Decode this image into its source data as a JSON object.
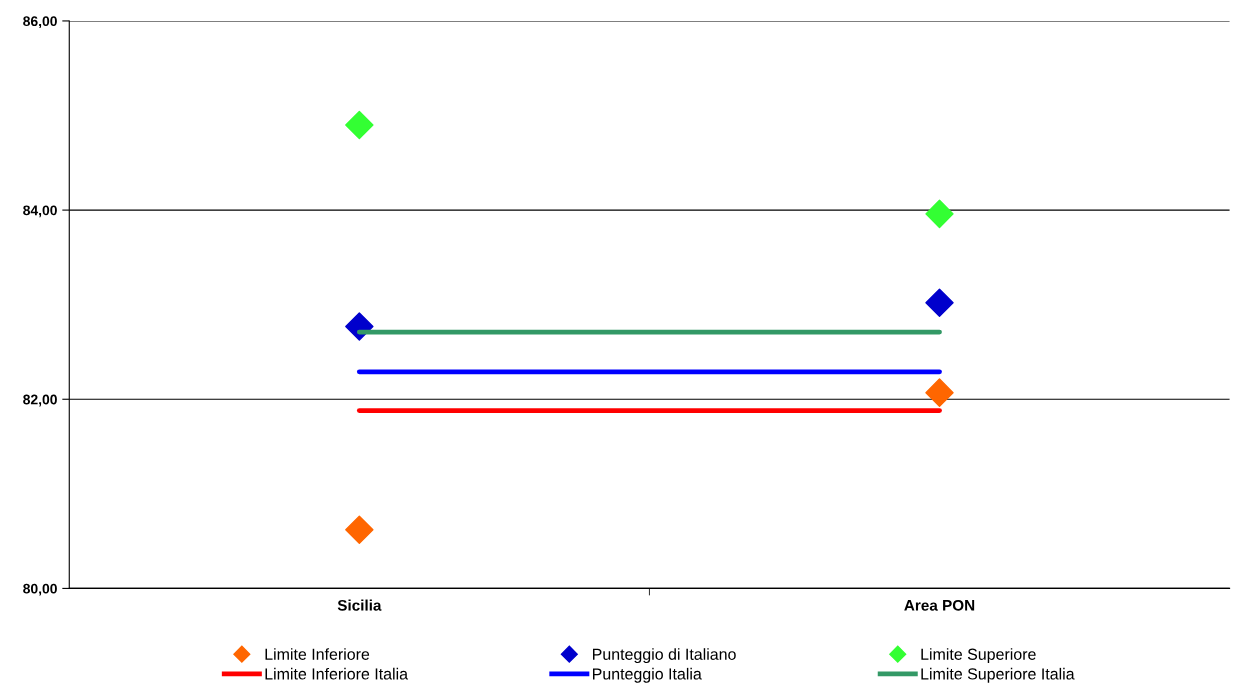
{
  "chart_data": {
    "type": "scatter",
    "categories": [
      "Sicilia",
      "Area PON"
    ],
    "ylim": [
      80,
      86
    ],
    "yticks": [
      {
        "value": 80,
        "label": "80,00"
      },
      {
        "value": 82,
        "label": "82,00"
      },
      {
        "value": 84,
        "label": "84,00"
      },
      {
        "value": 86,
        "label": "86,00"
      }
    ],
    "grid": "y",
    "legend": "bottom",
    "series": [
      {
        "name": "Limite Inferiore",
        "marker": "diamond",
        "color": "#ff6600",
        "values": [
          80.62,
          82.07
        ]
      },
      {
        "name": "Punteggio di Italiano",
        "marker": "diamond",
        "color": "#0000cc",
        "values": [
          82.77,
          83.02
        ]
      },
      {
        "name": "Limite Superiore",
        "marker": "diamond",
        "color": "#33ff33",
        "values": [
          84.9,
          83.96
        ]
      },
      {
        "name": "Limite Inferiore Italia",
        "type": "line",
        "color": "#ff0000",
        "values": [
          81.88,
          81.88
        ]
      },
      {
        "name": "Punteggio Italia",
        "type": "line",
        "color": "#0000ff",
        "values": [
          82.29,
          82.29
        ]
      },
      {
        "name": "Limite Superiore Italia",
        "type": "line",
        "color": "#339966",
        "values": [
          82.71,
          82.71
        ]
      }
    ]
  }
}
